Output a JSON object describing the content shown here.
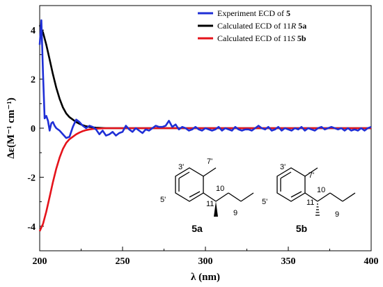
{
  "chart_data": {
    "type": "line",
    "xlabel": "λ (nm)",
    "ylabel": "Δε(M⁻¹ cm⁻¹)",
    "xlim": [
      200,
      400
    ],
    "ylim": [
      -5,
      5
    ],
    "x_ticks": [
      200,
      250,
      300,
      350,
      400
    ],
    "y_ticks": [
      -4,
      -2,
      0,
      2,
      4
    ],
    "x_tick_labels": [
      "200",
      "250",
      "300",
      "350",
      "400"
    ],
    "y_tick_labels": [
      "-4",
      "-2",
      "0",
      "2",
      "4"
    ],
    "grid": false,
    "legend_position": "top-right",
    "series": [
      {
        "name": "Experiment ECD of 5",
        "legend": {
          "text": "Experiment ECD of ",
          "bold": "5"
        },
        "color": "#1f2fd6",
        "x": [
          200,
          201,
          202,
          203,
          204,
          205,
          206,
          207,
          208,
          209,
          210,
          212,
          214,
          216,
          218,
          220,
          222,
          224,
          226,
          228,
          230,
          232,
          234,
          236,
          238,
          240,
          242,
          244,
          246,
          248,
          250,
          252,
          254,
          256,
          258,
          260,
          262,
          264,
          266,
          268,
          270,
          272,
          274,
          276,
          278,
          280,
          282,
          284,
          286,
          288,
          290,
          292,
          294,
          296,
          298,
          300,
          302,
          304,
          306,
          308,
          310,
          312,
          314,
          316,
          318,
          320,
          322,
          324,
          326,
          328,
          330,
          332,
          334,
          336,
          338,
          340,
          342,
          344,
          346,
          348,
          350,
          352,
          354,
          356,
          358,
          360,
          362,
          364,
          366,
          368,
          370,
          372,
          374,
          376,
          378,
          380,
          382,
          384,
          386,
          388,
          390,
          392,
          394,
          396,
          398,
          400
        ],
        "y": [
          3.4,
          4.4,
          2.2,
          0.4,
          0.5,
          0.3,
          -0.1,
          0.2,
          0.25,
          0.1,
          0.0,
          -0.1,
          -0.25,
          -0.4,
          -0.35,
          0.05,
          0.35,
          0.25,
          0.1,
          0.0,
          0.1,
          0.05,
          -0.05,
          -0.25,
          -0.1,
          -0.3,
          -0.25,
          -0.15,
          -0.3,
          -0.2,
          -0.15,
          0.1,
          -0.05,
          -0.15,
          0.0,
          -0.1,
          -0.2,
          -0.05,
          -0.1,
          0.0,
          0.1,
          0.05,
          0.05,
          0.1,
          0.3,
          0.05,
          0.15,
          -0.05,
          0.05,
          0.0,
          -0.1,
          -0.05,
          0.05,
          -0.05,
          -0.1,
          0.0,
          -0.05,
          -0.1,
          -0.05,
          0.05,
          -0.1,
          0.0,
          -0.05,
          -0.1,
          0.05,
          -0.05,
          -0.1,
          -0.05,
          -0.05,
          -0.1,
          0.0,
          0.1,
          0.0,
          -0.05,
          0.05,
          -0.1,
          -0.05,
          0.05,
          -0.1,
          0.0,
          -0.05,
          -0.1,
          0.0,
          -0.05,
          0.05,
          -0.1,
          0.0,
          -0.05,
          -0.1,
          0.0,
          0.05,
          -0.05,
          0.0,
          0.05,
          0.0,
          -0.05,
          0.0,
          -0.1,
          0.0,
          -0.1,
          -0.05,
          -0.1,
          0.0,
          -0.1,
          0.0,
          0.05
        ]
      },
      {
        "name": "Calculated ECD of 11R 5a",
        "legend": {
          "text": "Calculated ECD of 11",
          "italic": "R",
          "bold": "5a"
        },
        "color": "#000000",
        "x": [
          200,
          202,
          204,
          206,
          208,
          210,
          212,
          214,
          216,
          218,
          220,
          222,
          224,
          226,
          228,
          230,
          232,
          234,
          236,
          240,
          250,
          260,
          280,
          300,
          350,
          400
        ],
        "y": [
          4.2,
          3.9,
          3.4,
          2.8,
          2.2,
          1.65,
          1.2,
          0.85,
          0.6,
          0.45,
          0.35,
          0.25,
          0.18,
          0.12,
          0.08,
          0.05,
          0.03,
          0.02,
          0.01,
          0.0,
          0.0,
          0.0,
          0.0,
          0.0,
          0.0,
          0.0
        ]
      },
      {
        "name": "Calculated ECD of 11S 5b",
        "legend": {
          "text": "Calculated ECD of 11",
          "italic": "S",
          "bold": "5b"
        },
        "color": "#e5131b",
        "x": [
          200,
          202,
          204,
          206,
          208,
          210,
          212,
          214,
          216,
          218,
          220,
          222,
          224,
          226,
          228,
          230,
          232,
          234,
          236,
          240,
          250,
          260,
          280,
          300,
          350,
          400
        ],
        "y": [
          -4.2,
          -3.9,
          -3.4,
          -2.8,
          -2.2,
          -1.65,
          -1.2,
          -0.85,
          -0.6,
          -0.45,
          -0.35,
          -0.25,
          -0.18,
          -0.12,
          -0.08,
          -0.05,
          -0.03,
          -0.02,
          -0.01,
          0.0,
          0.0,
          0.0,
          0.0,
          0.0,
          0.0,
          0.0
        ]
      }
    ]
  },
  "structures": [
    {
      "label": "5a",
      "atoms": {
        "c3": "3'",
        "c7": "7'",
        "c5": "5'",
        "c11": "11",
        "c10": "10",
        "c9": "9"
      }
    },
    {
      "label": "5b",
      "atoms": {
        "c3": "3'",
        "c7": "7'",
        "c5": "5'",
        "c11": "11",
        "c10": "10",
        "c9": "9"
      }
    }
  ]
}
